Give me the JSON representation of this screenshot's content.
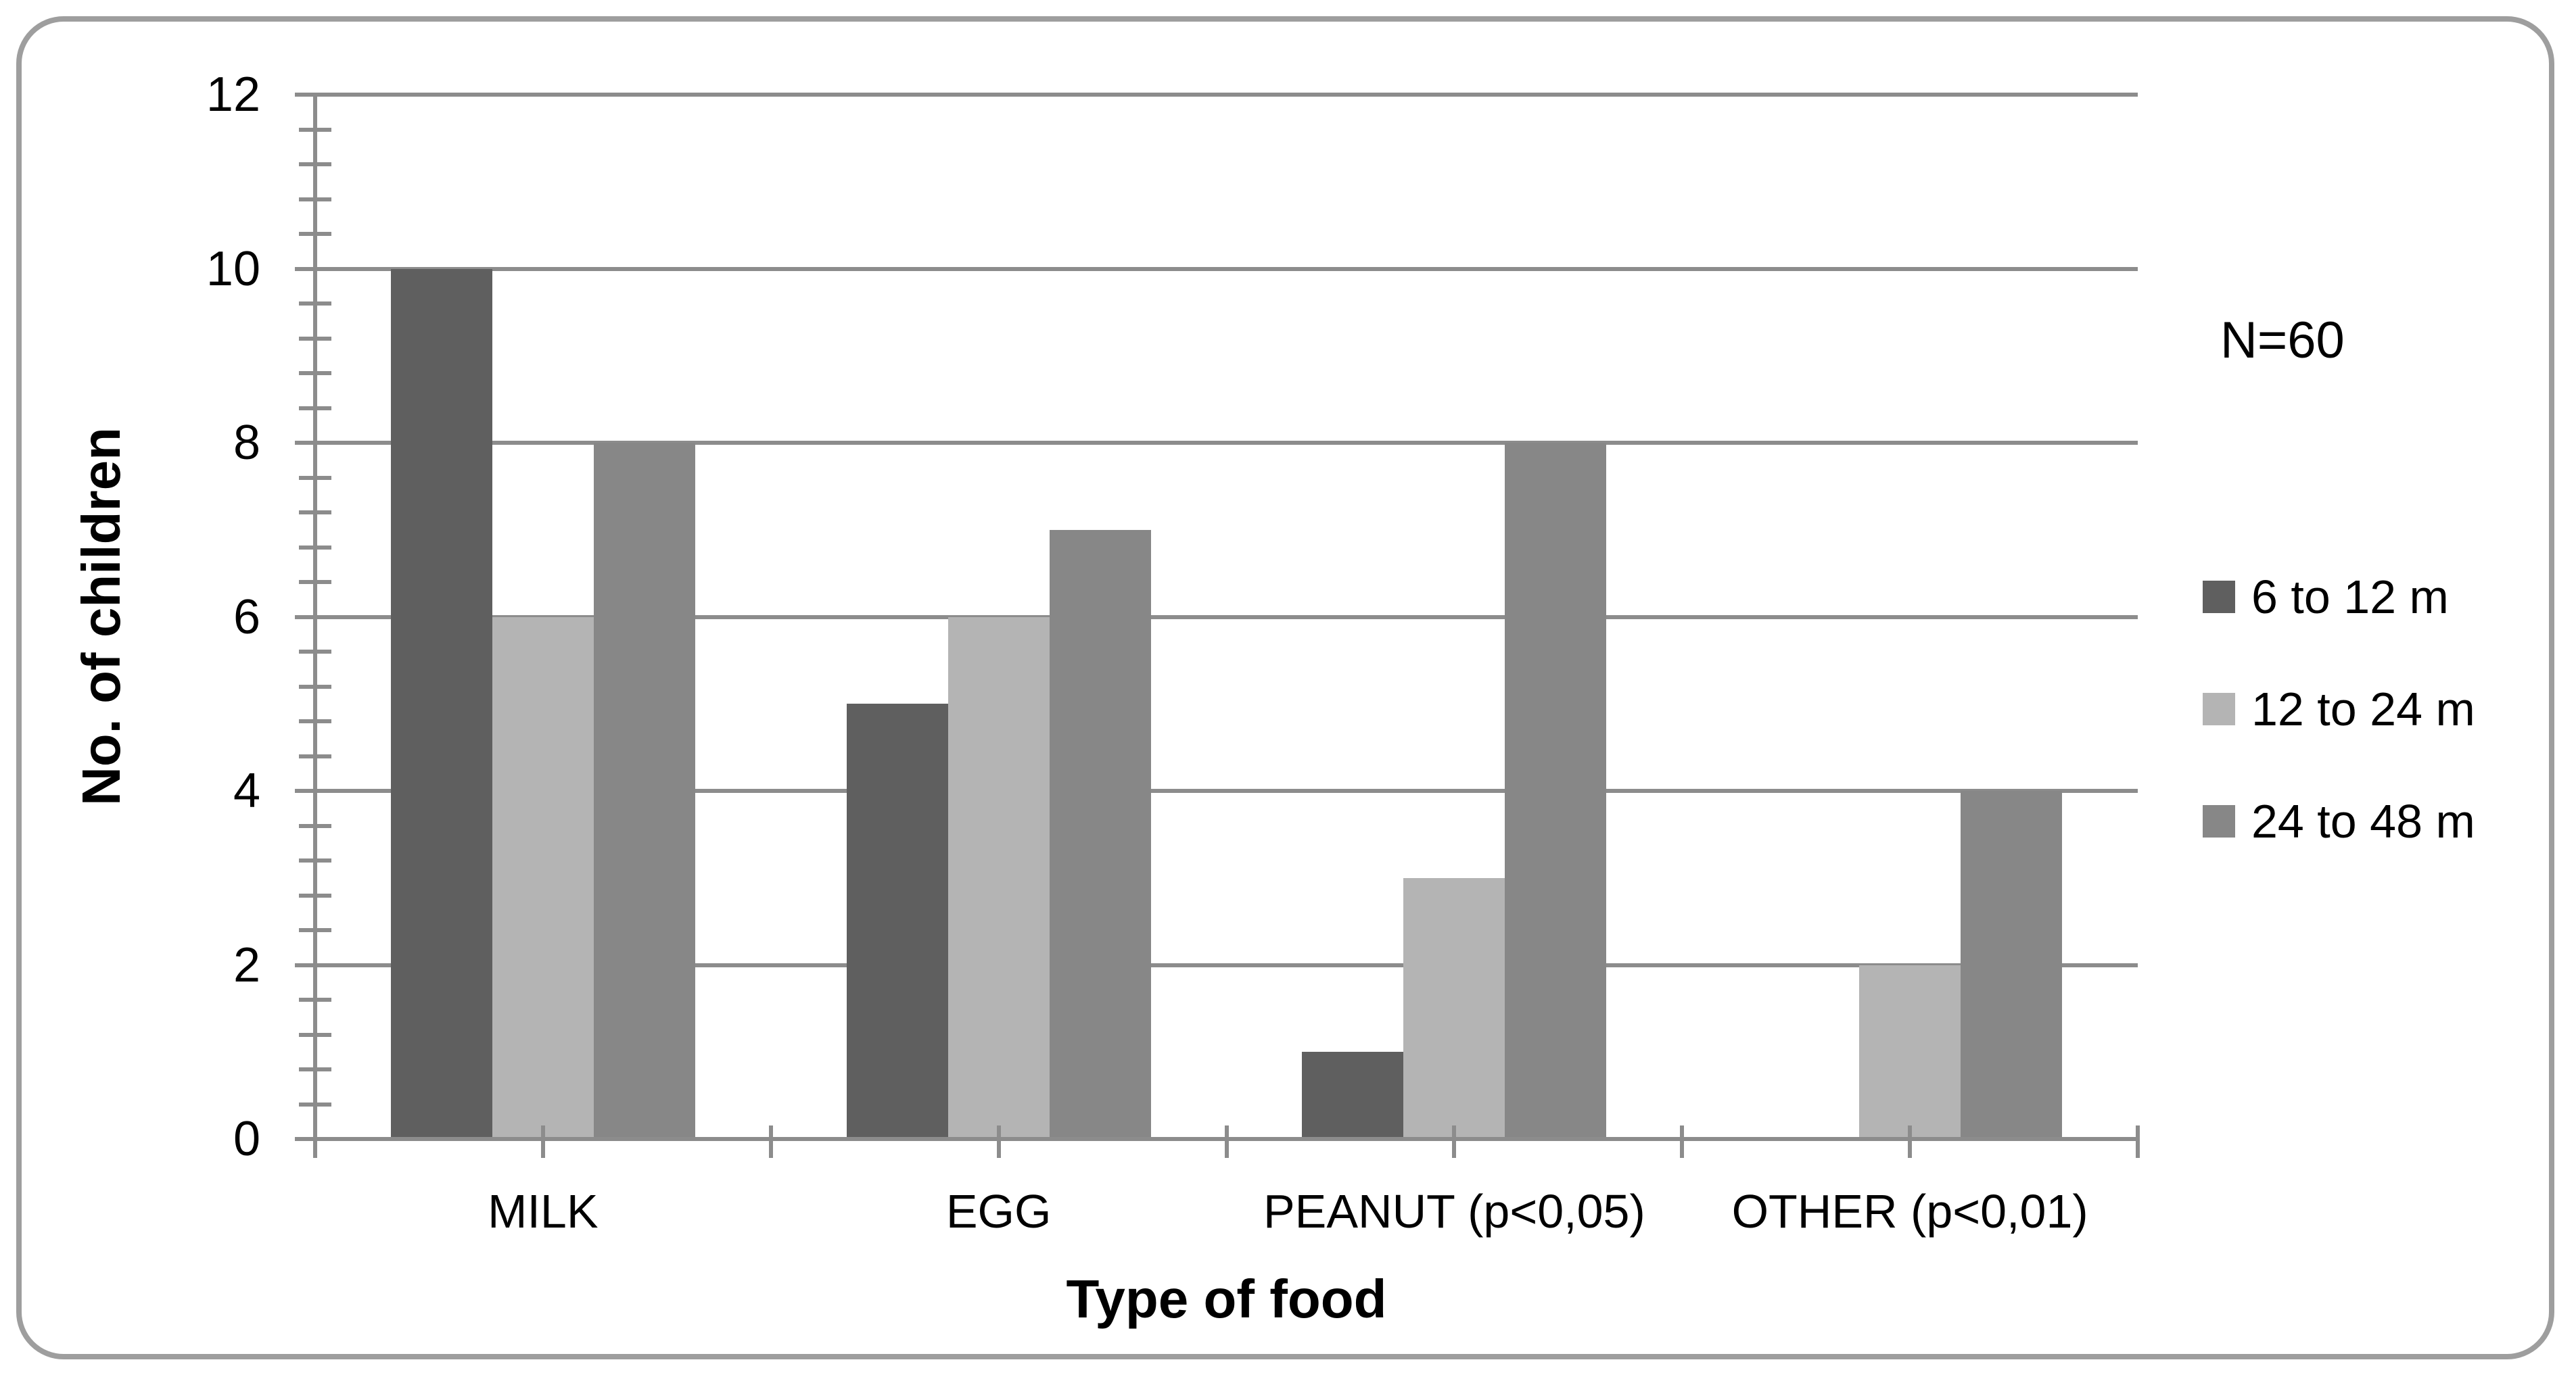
{
  "chart_data": {
    "type": "bar",
    "title": "",
    "categories": [
      "MILK",
      "EGG",
      "PEANUT (p<0,05)",
      "OTHER (p<0,01)"
    ],
    "series": [
      {
        "name": "6 to 12 m",
        "color": "#5f5f5f",
        "values": [
          10,
          5,
          1,
          0
        ]
      },
      {
        "name": "12 to 24 m",
        "color": "#b4b4b4",
        "values": [
          6,
          6,
          3,
          2
        ]
      },
      {
        "name": "24 to 48 m",
        "color": "#878787",
        "values": [
          8,
          7,
          8,
          4
        ]
      }
    ],
    "xlabel": "Type of food",
    "ylabel": "No. of children",
    "annotation": "N=60",
    "ylim": [
      0,
      12
    ],
    "ytick_interval": 2,
    "ytick_labels": [
      "0",
      "2",
      "4",
      "6",
      "8",
      "10",
      "12"
    ],
    "yminor_interval": 0.4,
    "xtick_interval_fraction": 0.125,
    "grid": true,
    "legend_position": "right-middle",
    "colors": {
      "axis": "#8c8c8c",
      "grid": "#8c8c8c",
      "border": "#9e9e9e",
      "text": "#000000",
      "background": "#ffffff"
    }
  }
}
